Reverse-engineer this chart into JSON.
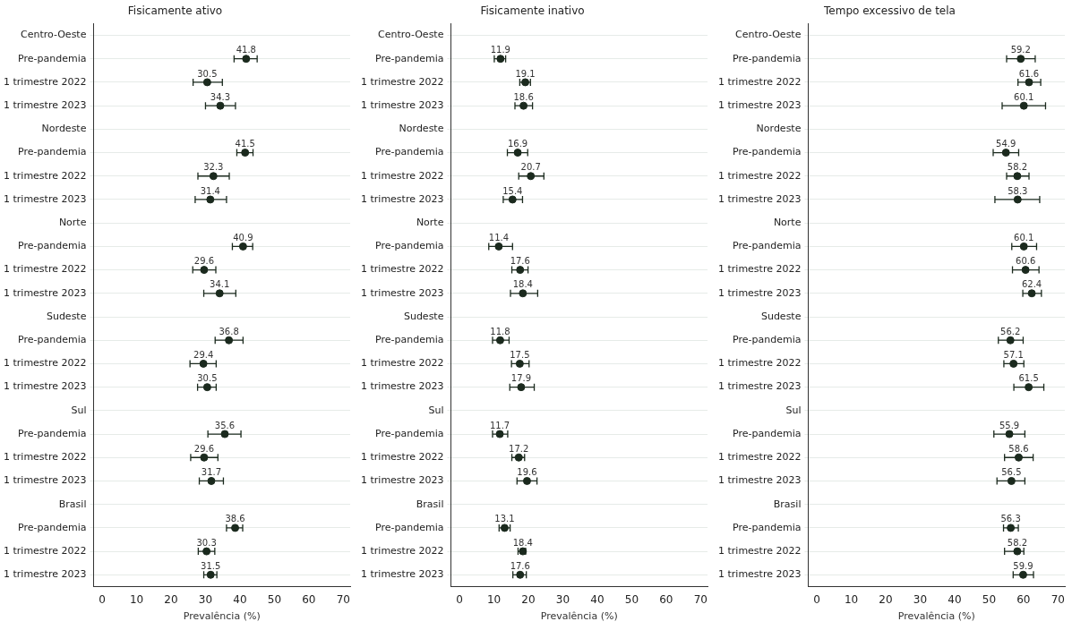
{
  "chart_data": [
    {
      "type": "scatter",
      "orientation": "horizontal",
      "title": "Fisicamente ativo",
      "xlabel": "Prevalência (%)",
      "color": "#1b2a1e",
      "marker": "circle",
      "grid": "y",
      "data_labels": true,
      "xlim": [
        -2.5,
        72
      ],
      "xticks": [
        0,
        10,
        20,
        30,
        40,
        50,
        60,
        70
      ],
      "categories": [
        "Centro-Oeste",
        "Pre-pandemia",
        "1 trimestre 2022",
        "1 trimestre 2023",
        "Nordeste",
        "Pre-pandemia",
        "1 trimestre 2022",
        "1 trimestre 2023",
        "Norte",
        "Pre-pandemia",
        "1 trimestre 2022",
        "1 trimestre 2023",
        "Sudeste",
        "Pre-pandemia",
        "1 trimestre 2022",
        "1 trimestre 2023",
        "Sul",
        "Pre-pandemia",
        "1 trimestre 2022",
        "1 trimestre 2023",
        "Brasil",
        "Pre-pandemia",
        "1 trimestre 2022",
        "1 trimestre 2023"
      ],
      "values": [
        null,
        41.8,
        30.5,
        34.3,
        null,
        41.5,
        32.3,
        31.4,
        null,
        40.9,
        29.6,
        34.1,
        null,
        36.8,
        29.4,
        30.5,
        null,
        35.6,
        29.6,
        31.7,
        null,
        38.6,
        30.3,
        31.5
      ],
      "errors": [
        null,
        [
          38.3,
          45.0
        ],
        [
          26.4,
          34.9
        ],
        [
          30.0,
          38.7
        ],
        null,
        [
          39.1,
          43.8
        ],
        [
          27.8,
          36.9
        ],
        [
          27.0,
          36.1
        ],
        null,
        [
          37.8,
          43.7
        ],
        [
          26.3,
          33.0
        ],
        [
          29.5,
          38.8
        ],
        null,
        [
          32.8,
          40.9
        ],
        [
          25.5,
          33.1
        ],
        [
          27.7,
          33.1
        ],
        null,
        [
          30.7,
          40.3
        ],
        [
          25.7,
          33.6
        ],
        [
          28.2,
          35.2
        ],
        null,
        [
          36.1,
          40.8
        ],
        [
          27.9,
          32.7
        ],
        [
          29.5,
          33.3
        ]
      ]
    },
    {
      "type": "scatter",
      "orientation": "horizontal",
      "title": "Fisicamente inativo",
      "xlabel": "Prevalência (%)",
      "color": "#1b2a1e",
      "marker": "circle",
      "grid": "y",
      "data_labels": true,
      "xlim": [
        -2.5,
        72
      ],
      "xticks": [
        0,
        10,
        20,
        30,
        40,
        50,
        60,
        70
      ],
      "categories": [
        "Centro-Oeste",
        "Pre-pandemia",
        "1 trimestre 2022",
        "1 trimestre 2023",
        "Nordeste",
        "Pre-pandemia",
        "1 trimestre 2022",
        "1 trimestre 2023",
        "Norte",
        "Pre-pandemia",
        "1 trimestre 2022",
        "1 trimestre 2023",
        "Sudeste",
        "Pre-pandemia",
        "1 trimestre 2022",
        "1 trimestre 2023",
        "Sul",
        "Pre-pandemia",
        "1 trimestre 2022",
        "1 trimestre 2023",
        "Brasil",
        "Pre-pandemia",
        "1 trimestre 2022",
        "1 trimestre 2023"
      ],
      "values": [
        null,
        11.9,
        19.1,
        18.6,
        null,
        16.9,
        20.7,
        15.4,
        null,
        11.4,
        17.6,
        18.4,
        null,
        11.8,
        17.5,
        17.9,
        null,
        11.7,
        17.2,
        19.6,
        null,
        13.1,
        18.4,
        17.6
      ],
      "errors": [
        null,
        [
          10.1,
          13.4
        ],
        [
          17.5,
          20.6
        ],
        [
          16.1,
          21.2
        ],
        null,
        [
          13.9,
          19.8
        ],
        [
          17.2,
          24.5
        ],
        [
          12.7,
          18.3
        ],
        null,
        [
          8.5,
          15.4
        ],
        [
          15.2,
          19.9
        ],
        [
          14.8,
          22.7
        ],
        null,
        [
          9.6,
          14.4
        ],
        [
          15.1,
          20.2
        ],
        [
          14.6,
          21.7
        ],
        null,
        [
          9.6,
          14.0
        ],
        [
          15.2,
          18.9
        ],
        [
          16.7,
          22.5
        ],
        null,
        [
          11.5,
          14.7
        ],
        [
          17.0,
          19.2
        ],
        [
          15.5,
          19.4
        ]
      ]
    },
    {
      "type": "scatter",
      "orientation": "horizontal",
      "title": "Tempo excessivo de tela",
      "xlabel": "Prevalência (%)",
      "color": "#1b2a1e",
      "marker": "circle",
      "grid": "y",
      "data_labels": true,
      "xlim": [
        -2.5,
        72
      ],
      "xticks": [
        0,
        10,
        20,
        30,
        40,
        50,
        60,
        70
      ],
      "categories": [
        "Centro-Oeste",
        "Pre-pandemia",
        "1 trimestre 2022",
        "1 trimestre 2023",
        "Nordeste",
        "Pre-pandemia",
        "1 trimestre 2022",
        "1 trimestre 2023",
        "Norte",
        "Pre-pandemia",
        "1 trimestre 2022",
        "1 trimestre 2023",
        "Sudeste",
        "Pre-pandemia",
        "1 trimestre 2022",
        "1 trimestre 2023",
        "Sul",
        "Pre-pandemia",
        "1 trimestre 2022",
        "1 trimestre 2023",
        "Brasil",
        "Pre-pandemia",
        "1 trimestre 2022",
        "1 trimestre 2023"
      ],
      "values": [
        null,
        59.2,
        61.6,
        60.1,
        null,
        54.9,
        58.2,
        58.3,
        null,
        60.1,
        60.6,
        62.4,
        null,
        56.2,
        57.1,
        61.5,
        null,
        55.9,
        58.6,
        56.5,
        null,
        56.3,
        58.2,
        59.9
      ],
      "errors": [
        null,
        [
          55.1,
          63.4
        ],
        [
          58.4,
          65.0
        ],
        [
          53.8,
          66.4
        ],
        null,
        [
          51.2,
          58.6
        ],
        [
          55.1,
          61.6
        ],
        [
          51.7,
          64.7
        ],
        null,
        [
          56.6,
          63.8
        ],
        [
          56.8,
          64.5
        ],
        [
          59.8,
          65.2
        ],
        null,
        [
          52.7,
          59.9
        ],
        [
          54.3,
          60.1
        ],
        [
          57.2,
          65.9
        ],
        null,
        [
          51.4,
          60.4
        ],
        [
          54.5,
          62.8
        ],
        [
          52.3,
          60.4
        ],
        null,
        [
          54.2,
          58.5
        ],
        [
          54.5,
          60.1
        ],
        [
          57.0,
          62.9
        ]
      ]
    }
  ]
}
